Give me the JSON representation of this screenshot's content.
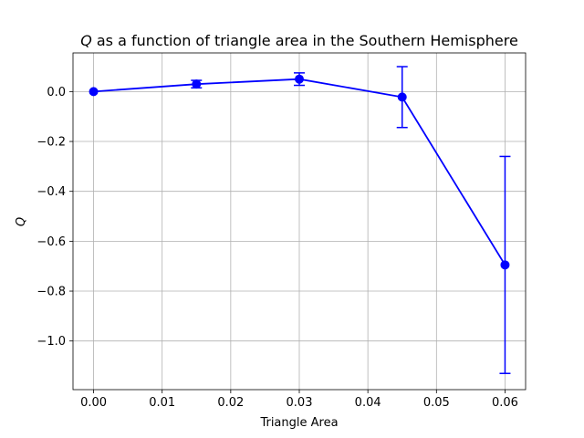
{
  "chart_data": {
    "type": "line",
    "title_prefix": "Q",
    "title_suffix": " as a function of triangle area in the Southern Hemisphere",
    "xlabel": "Triangle Area",
    "ylabel": "Q",
    "xlim": [
      -0.003,
      0.063
    ],
    "ylim": [
      -1.195,
      0.155
    ],
    "grid": true,
    "x_ticks": [
      0.0,
      0.01,
      0.02,
      0.03,
      0.04,
      0.05,
      0.06
    ],
    "x_tick_labels": [
      "0.00",
      "0.01",
      "0.02",
      "0.03",
      "0.04",
      "0.05",
      "0.06"
    ],
    "y_ticks": [
      0.0,
      -0.2,
      -0.4,
      -0.6,
      -0.8,
      -1.0
    ],
    "y_tick_labels": [
      "0.0",
      "−0.2",
      "−0.4",
      "−0.6",
      "−0.8",
      "−1.0"
    ],
    "series": [
      {
        "color": "#0000ff",
        "x": [
          0.0,
          0.015,
          0.03,
          0.045,
          0.06
        ],
        "y": [
          0.0,
          0.03,
          0.05,
          -0.022,
          -0.695
        ],
        "err_low": [
          0.0,
          0.015,
          0.025,
          0.122,
          0.435
        ],
        "err_high": [
          0.0,
          0.015,
          0.025,
          0.122,
          0.435
        ]
      }
    ]
  }
}
